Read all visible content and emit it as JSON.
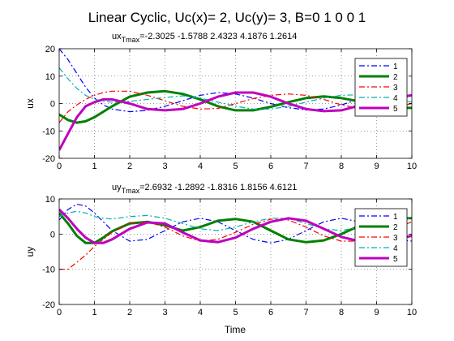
{
  "figure": {
    "title": "Linear Cyclic,   Uc(x)= 2, Uc(y)= 3, B=0  1  0  0  1",
    "x_label": "Time"
  },
  "chart_data": [
    {
      "type": "line",
      "ylabel": "ux",
      "annotation": {
        "base": "ux",
        "sub": "Tmax",
        "values_text": "=-2.3025      -1.5788      2.4323      4.1876      1.2614"
      },
      "xlim": [
        0,
        10
      ],
      "ylim": [
        -20,
        20
      ],
      "xticks": [
        0,
        1,
        2,
        3,
        4,
        5,
        6,
        7,
        8,
        9,
        10
      ],
      "yticks": [
        -20,
        -10,
        0,
        10,
        20
      ],
      "grid": true,
      "legend_position": "top-right",
      "series": [
        {
          "name": "1",
          "color": "#0000ff",
          "dash": "dash-dot",
          "width": 1.2,
          "x": [
            0,
            0.25,
            0.5,
            0.75,
            1,
            1.25,
            1.5,
            2,
            2.5,
            3,
            3.5,
            4,
            4.5,
            5,
            5.5,
            6,
            6.5,
            7,
            7.5,
            8,
            8.5,
            9,
            9.5,
            10
          ],
          "y": [
            20,
            16,
            11,
            6,
            2,
            -0.5,
            -2,
            -3,
            -2.5,
            -1,
            1,
            3,
            4,
            3.5,
            2,
            0,
            -1.5,
            -2.3,
            -2,
            -0.5,
            1.5,
            3.5,
            4,
            3
          ]
        },
        {
          "name": "2",
          "color": "#008000",
          "dash": "solid",
          "width": 3,
          "x": [
            0,
            0.25,
            0.5,
            0.75,
            1,
            1.25,
            1.5,
            2,
            2.5,
            3,
            3.5,
            4,
            4.5,
            5,
            5.5,
            6,
            6.5,
            7,
            7.5,
            8,
            8.5,
            9,
            9.5,
            10
          ],
          "y": [
            -4,
            -6,
            -7,
            -6.5,
            -5,
            -3,
            -1,
            2.5,
            4,
            4.5,
            3.5,
            1.5,
            -1,
            -2.5,
            -2.5,
            -1.2,
            0.5,
            2,
            2.6,
            2,
            0.8,
            -0.8,
            -1.6,
            -1.6
          ]
        },
        {
          "name": "3",
          "color": "#ff0000",
          "dash": "dash-dot",
          "width": 1.2,
          "x": [
            0,
            0.25,
            0.5,
            0.75,
            1,
            1.25,
            1.5,
            2,
            2.5,
            3,
            3.5,
            4,
            4.5,
            5,
            5.5,
            6,
            6.5,
            7,
            7.5,
            8,
            8.5,
            9,
            9.5,
            10
          ],
          "y": [
            -7,
            -3,
            -0.5,
            1.5,
            3,
            4,
            4.5,
            4.5,
            3,
            1,
            -1,
            -2,
            -1.8,
            0,
            1.8,
            3,
            3.5,
            3,
            1.5,
            -0.5,
            -1.8,
            -2.2,
            -1.5,
            0
          ]
        },
        {
          "name": "4",
          "color": "#00b0b0",
          "dash": "dash-dot",
          "width": 1.2,
          "x": [
            0,
            0.25,
            0.5,
            0.75,
            1,
            1.25,
            1.5,
            2,
            2.5,
            3,
            3.5,
            4,
            4.5,
            5,
            5.5,
            6,
            6.5,
            7,
            7.5,
            8,
            8.5,
            9,
            9.5,
            10
          ],
          "y": [
            13,
            9,
            5.5,
            3,
            1.5,
            0.8,
            0.5,
            0.8,
            1.5,
            2.2,
            2.8,
            2,
            0.5,
            -1,
            -2,
            -2,
            -1,
            0.5,
            2,
            3,
            3.2,
            2.5,
            1.5,
            0.5
          ]
        },
        {
          "name": "5",
          "color": "#bf00bf",
          "dash": "solid",
          "width": 3,
          "x": [
            0,
            0.25,
            0.5,
            0.75,
            1,
            1.25,
            1.5,
            2,
            2.5,
            3,
            3.5,
            4,
            4.5,
            5,
            5.5,
            6,
            6.5,
            7,
            7.5,
            8,
            8.5,
            9,
            9.5,
            10
          ],
          "y": [
            -17,
            -11,
            -5,
            -1,
            0.5,
            1.5,
            1.5,
            0,
            -2,
            -2.5,
            -2,
            0,
            2.5,
            4,
            4,
            2.5,
            0,
            -2,
            -2.8,
            -2.5,
            -0.8,
            1,
            2,
            3
          ]
        }
      ]
    },
    {
      "type": "line",
      "ylabel": "uy",
      "annotation": {
        "base": "uy",
        "sub": "Tmax",
        "values_text": "=2.6932      -1.2892      -1.8316      1.8156      4.6121"
      },
      "xlim": [
        0,
        10
      ],
      "ylim": [
        -20,
        10
      ],
      "xticks": [
        0,
        1,
        2,
        3,
        4,
        5,
        6,
        7,
        8,
        9,
        10
      ],
      "yticks": [
        -20,
        -10,
        0,
        10
      ],
      "grid": true,
      "legend_position": "top-right",
      "series": [
        {
          "name": "1",
          "color": "#0000ff",
          "dash": "dash-dot",
          "width": 1.2,
          "x": [
            0,
            0.25,
            0.5,
            0.75,
            1,
            1.25,
            1.5,
            2,
            2.5,
            3,
            3.5,
            4,
            4.5,
            5,
            5.5,
            6,
            6.5,
            7,
            7.5,
            8,
            8.5,
            9,
            9.5,
            10
          ],
          "y": [
            4,
            7,
            8.5,
            8,
            6,
            3.5,
            1,
            -2,
            -1.5,
            1,
            3.5,
            4.5,
            3.5,
            1,
            -1.5,
            -2.5,
            -1.5,
            1,
            3.5,
            4.5,
            3.5,
            1,
            -1.5,
            -2
          ]
        },
        {
          "name": "2",
          "color": "#008000",
          "dash": "solid",
          "width": 3,
          "x": [
            0,
            0.25,
            0.5,
            0.75,
            1,
            1.25,
            1.5,
            2,
            2.5,
            3,
            3.5,
            4,
            4.5,
            5,
            5.5,
            6,
            6.5,
            7,
            7.5,
            8,
            8.5,
            9,
            9.5,
            10
          ],
          "y": [
            6,
            3,
            -0.5,
            -2.5,
            -2.5,
            -1,
            0.8,
            3,
            3.5,
            2.5,
            1,
            2,
            3.8,
            4.3,
            3.5,
            1,
            -1.5,
            -2.3,
            -1.8,
            0,
            2.3,
            4,
            4.5,
            4.5
          ]
        },
        {
          "name": "3",
          "color": "#ff0000",
          "dash": "dash-dot",
          "width": 1.2,
          "x": [
            0,
            0.25,
            0.5,
            0.75,
            1,
            1.25,
            1.5,
            2,
            2.5,
            3,
            3.5,
            4,
            4.5,
            5,
            5.5,
            6,
            6.5,
            7,
            7.5,
            8,
            8.5,
            9,
            9.5,
            10
          ],
          "y": [
            -10,
            -10,
            -8,
            -6,
            -3.5,
            -1.5,
            0.5,
            3,
            3.5,
            2,
            -0.5,
            -2,
            -1.5,
            0.5,
            2.8,
            4.2,
            4,
            2,
            -0.5,
            -2,
            -2,
            -0.5,
            1.5,
            3.5
          ]
        },
        {
          "name": "4",
          "color": "#00b0b0",
          "dash": "dash-dot",
          "width": 1.2,
          "x": [
            0,
            0.25,
            0.5,
            0.75,
            1,
            1.25,
            1.5,
            2,
            2.5,
            3,
            3.5,
            4,
            4.5,
            5,
            5.5,
            6,
            6.5,
            7,
            7.5,
            8,
            8.5,
            9,
            9.5,
            10
          ],
          "y": [
            5,
            6,
            6.5,
            6,
            5,
            4.5,
            4.3,
            5,
            5.3,
            4.5,
            3,
            1.5,
            1,
            2,
            3.5,
            4.5,
            4.5,
            3,
            1.5,
            1,
            2,
            3.5,
            4.5,
            4.5
          ]
        },
        {
          "name": "5",
          "color": "#bf00bf",
          "dash": "solid",
          "width": 3,
          "x": [
            0,
            0.25,
            0.5,
            0.75,
            1,
            1.25,
            1.5,
            2,
            2.5,
            3,
            3.5,
            4,
            4.5,
            5,
            5.5,
            6,
            6.5,
            7,
            7.5,
            8,
            8.5,
            9,
            9.5,
            10
          ],
          "y": [
            7,
            4.5,
            1.5,
            -1,
            -2.5,
            -2.5,
            -1.5,
            1.5,
            3.3,
            3,
            0.5,
            -1.8,
            -2.3,
            -1,
            1.5,
            3.5,
            4.5,
            3.8,
            1.5,
            -0.8,
            -2,
            -2.3,
            -1.5,
            -0.5
          ]
        }
      ]
    }
  ]
}
